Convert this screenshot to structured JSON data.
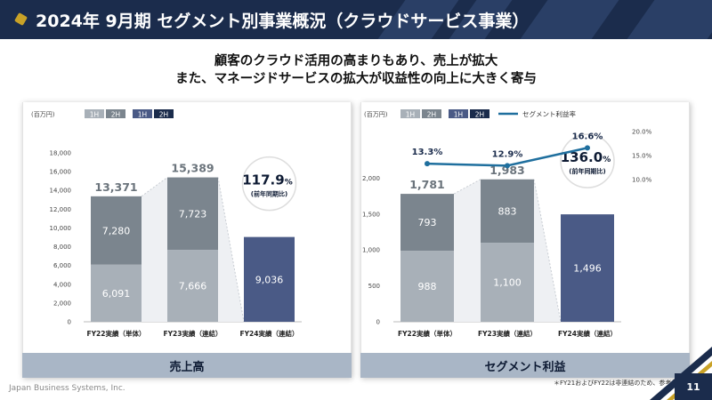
{
  "header": {
    "title": "2024年 9月期 セグメント別事業概況（クラウドサービス事業）"
  },
  "subtitle": {
    "line1": "顧客のクラウド活用の高まりもあり、売上が拡大",
    "line2": "また、マネージドサービスの拡大が収益性の向上に大きく寄与"
  },
  "footer": {
    "footnote": "＊FY21およびFY22は非連結のため、参考値",
    "company": "Japan Business Systems, Inc.",
    "page_number": "11"
  },
  "colors": {
    "navy": "#1b2c4c",
    "bar_1h_prev": "#a8b0b8",
    "bar_2h_prev": "#7b858e",
    "bar_current": "#4a5a86",
    "line": "#1f6f9e",
    "footer_band": "#a9b6c6"
  },
  "chart_data": [
    {
      "type": "bar",
      "panel_label": "売上高",
      "unit_label": "(百万円)",
      "legend": [
        "1H",
        "2H",
        "1H",
        "2H"
      ],
      "categories": [
        "FY22実績（単体）",
        "FY23実績（連結）",
        "FY24実績（連結）"
      ],
      "series": [
        {
          "name": "1H",
          "values": [
            6091,
            7666,
            null
          ]
        },
        {
          "name": "2H",
          "values": [
            7280,
            7723,
            null
          ]
        },
        {
          "name": "FY24",
          "values": [
            null,
            null,
            9036
          ]
        }
      ],
      "totals": [
        13371,
        15389,
        null
      ],
      "value_labels_1h": [
        "6,091",
        "7,666",
        "9,036"
      ],
      "value_labels_2h": [
        "7,280",
        "7,723",
        ""
      ],
      "total_labels": [
        "13,371",
        "15,389"
      ],
      "yticks": [
        "0",
        "2,000",
        "4,000",
        "6,000",
        "8,000",
        "10,000",
        "12,000",
        "14,000",
        "16,000",
        "18,000"
      ],
      "ylim": [
        0,
        18000
      ],
      "callout": {
        "value": "117.9",
        "unit": "%",
        "sub": "(前年同期比)"
      }
    },
    {
      "type": "bar",
      "panel_label": "セグメント利益",
      "unit_label": "(百万円)",
      "legend": [
        "1H",
        "2H",
        "1H",
        "2H"
      ],
      "line_legend": "セグメント利益率",
      "categories": [
        "FY22実績（単体）",
        "FY23実績（連結）",
        "FY24実績（連結）"
      ],
      "series": [
        {
          "name": "1H",
          "values": [
            988,
            1100,
            null
          ]
        },
        {
          "name": "2H",
          "values": [
            793,
            883,
            null
          ]
        },
        {
          "name": "FY24",
          "values": [
            null,
            null,
            1496
          ]
        },
        {
          "name": "セグメント利益率",
          "values": [
            13.3,
            12.9,
            16.6
          ]
        }
      ],
      "totals": [
        1781,
        1983,
        null
      ],
      "value_labels_1h": [
        "988",
        "1,100",
        "1,496"
      ],
      "value_labels_2h": [
        "793",
        "883",
        ""
      ],
      "total_labels": [
        "1,781",
        "1,983"
      ],
      "margin_labels": [
        "13.3%",
        "12.9%",
        "16.6%"
      ],
      "yticks": [
        "0",
        "500",
        "1,000",
        "1,500",
        "2,000"
      ],
      "ylim": [
        0,
        2500
      ],
      "y2ticks": [
        "10.0%",
        "15.0%",
        "20.0%"
      ],
      "y2lim": [
        0,
        20
      ],
      "callout": {
        "value": "136.0",
        "unit": "%",
        "sub": "(前年同期比)"
      }
    }
  ]
}
